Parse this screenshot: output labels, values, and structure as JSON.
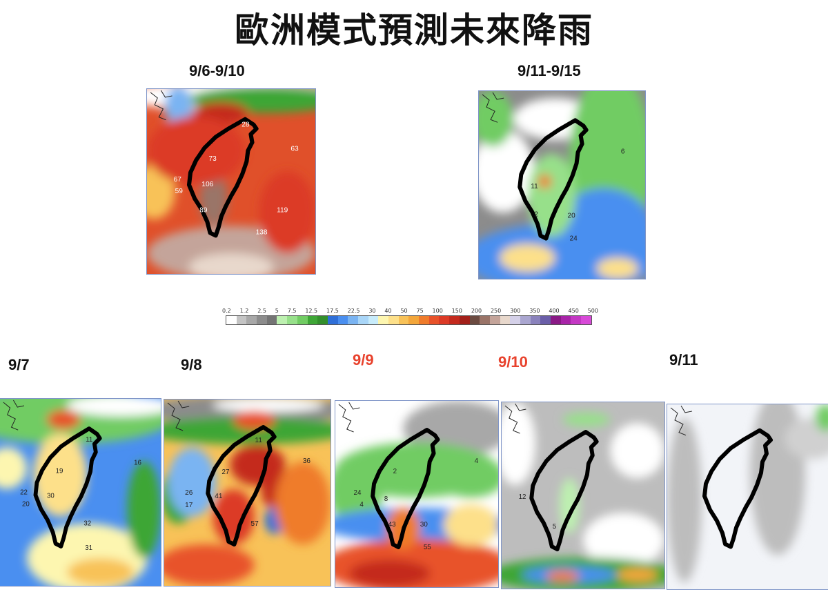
{
  "title": "歐洲模式預測未來降雨",
  "maps": [
    {
      "id": "m1",
      "label": "9/6-9/10",
      "highlight": false,
      "values": [
        "28",
        "73",
        "106",
        "67",
        "59",
        "89",
        "119",
        "138",
        "63"
      ]
    },
    {
      "id": "m2",
      "label": "9/11-9/15",
      "highlight": false,
      "values": [
        "11",
        "2",
        "20",
        "24",
        "6"
      ]
    },
    {
      "id": "m3",
      "label": "9/7",
      "highlight": false,
      "values": [
        "11",
        "19",
        "30",
        "22",
        "20",
        "32",
        "31",
        "16"
      ]
    },
    {
      "id": "m4",
      "label": "9/8",
      "highlight": false,
      "values": [
        "11",
        "27",
        "41",
        "26",
        "17",
        "57",
        "36"
      ]
    },
    {
      "id": "m5",
      "label": "9/9",
      "highlight": true,
      "values": [
        "2",
        "8",
        "24",
        "4",
        "43",
        "30",
        "55",
        "4"
      ]
    },
    {
      "id": "m6",
      "label": "9/10",
      "highlight": true,
      "values": [
        "12",
        "5"
      ]
    },
    {
      "id": "m7",
      "label": "9/11",
      "highlight": false,
      "values": []
    }
  ],
  "colorbar": {
    "ticks": [
      "0.2",
      "1.2",
      "2.5",
      "5",
      "7.5",
      "12.5",
      "17.5",
      "22.5",
      "30",
      "40",
      "50",
      "75",
      "100",
      "150",
      "200",
      "250",
      "300",
      "350",
      "400",
      "450",
      "500"
    ],
    "colors": [
      "#ffffff",
      "#c4c4c4",
      "#a8a8a8",
      "#8c8c8c",
      "#747474",
      "#bdf0b0",
      "#97e08a",
      "#71cc63",
      "#3ea636",
      "#338f2c",
      "#2f6fd8",
      "#4a8ff0",
      "#7ab4f2",
      "#a9d6f8",
      "#c8ecfb",
      "#fdf6b0",
      "#fde08a",
      "#f8c258",
      "#f3a63a",
      "#ef7b2b",
      "#e8522a",
      "#dc3a26",
      "#c42a1e",
      "#a3201a",
      "#6b4a40",
      "#9a7468",
      "#c4a49a",
      "#e8d8cc",
      "#d4d0e8",
      "#aaa6d0",
      "#8a82bc",
      "#6a5ea8",
      "#8a1a86",
      "#a824a8",
      "#c438c4",
      "#d84ad8"
    ],
    "accent_red": "#e8412c"
  }
}
